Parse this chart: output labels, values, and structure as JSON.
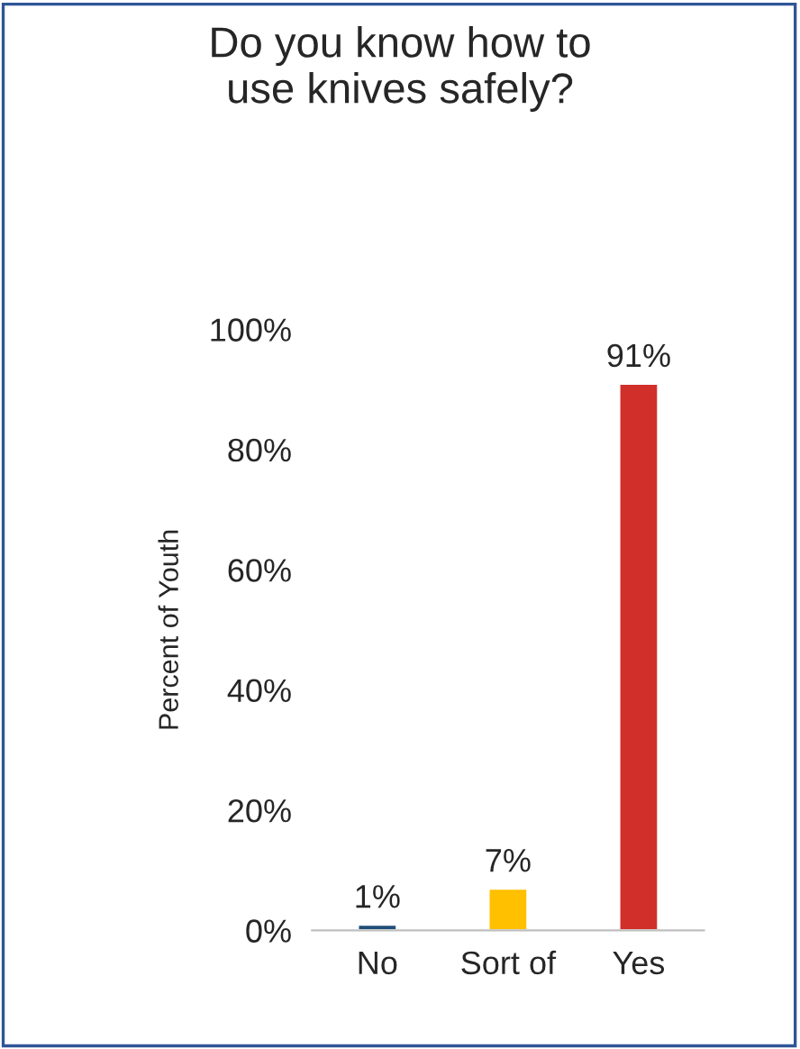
{
  "chart_data": {
    "type": "bar",
    "title": "Do you know how to\nuse knives safely?",
    "ylabel": "Percent of Youth",
    "categories": [
      "No",
      "Sort of",
      "Yes"
    ],
    "values": [
      1,
      7,
      91
    ],
    "colors": [
      "#1f4e79",
      "#ffc000",
      "#d12f2a"
    ],
    "value_labels": [
      "1%",
      "7%",
      "91%"
    ],
    "ylim": [
      0,
      100
    ],
    "yticks": [
      {
        "value": 0,
        "label": "0%"
      },
      {
        "value": 20,
        "label": "20%"
      },
      {
        "value": 40,
        "label": "40%"
      },
      {
        "value": 60,
        "label": "60%"
      },
      {
        "value": 80,
        "label": "80%"
      },
      {
        "value": 100,
        "label": "100%"
      }
    ],
    "grid": false,
    "legend": false
  }
}
